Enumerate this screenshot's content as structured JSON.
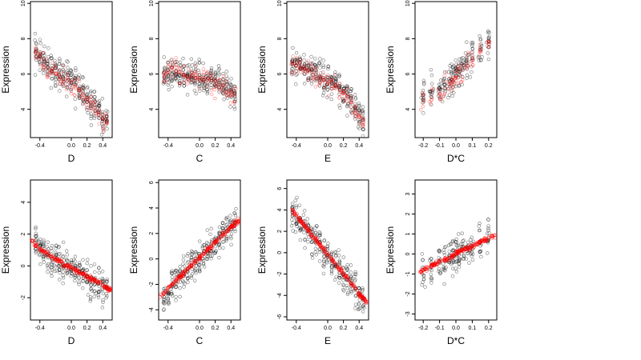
{
  "chart_data": [
    {
      "type": "scatter",
      "xlabel": "D",
      "ylabel": "Expression",
      "xlim": [
        -0.52,
        0.52
      ],
      "ylim": [
        2.4,
        10.1
      ],
      "xticks": [
        "-0.4",
        "0.0",
        "0.2",
        "0.4"
      ],
      "xtick_values": [
        -0.4,
        0.0,
        0.2,
        0.4
      ],
      "yticks": [
        "4",
        "6",
        "8",
        "10"
      ],
      "ytick_values": [
        4,
        6,
        8,
        10
      ],
      "series": [
        {
          "color": "#000000",
          "kind": "observed",
          "style": "open-circles",
          "x": [
            -0.45,
            -0.4,
            -0.35,
            -0.3,
            -0.25,
            -0.2,
            -0.15,
            -0.1,
            -0.05,
            0.0,
            0.05,
            0.1,
            0.15,
            0.2,
            0.25,
            0.3,
            0.35,
            0.4,
            0.45
          ],
          "y": [
            7.3,
            7.0,
            6.7,
            6.4,
            6.2,
            6.0,
            5.9,
            5.7,
            5.6,
            5.5,
            5.4,
            5.2,
            5.0,
            4.7,
            4.4,
            4.1,
            3.8,
            3.5,
            3.3
          ]
        },
        {
          "color": "#ff0000",
          "kind": "fitted",
          "style": "open-circles",
          "x": [
            -0.45,
            -0.4,
            -0.35,
            -0.3,
            -0.25,
            -0.2,
            -0.15,
            -0.1,
            -0.05,
            0.0,
            0.05,
            0.1,
            0.15,
            0.2,
            0.25,
            0.3,
            0.35,
            0.4,
            0.45
          ],
          "y": [
            7.2,
            6.9,
            6.6,
            6.4,
            6.2,
            6.0,
            5.8,
            5.7,
            5.6,
            5.4,
            5.3,
            5.1,
            4.9,
            4.6,
            4.3,
            4.0,
            3.7,
            3.4,
            3.2
          ]
        }
      ]
    },
    {
      "type": "scatter",
      "xlabel": "C",
      "ylabel": "Expression",
      "xlim": [
        -0.52,
        0.52
      ],
      "ylim": [
        2.4,
        10.1
      ],
      "xticks": [
        "-0.4",
        "0.0",
        "0.2",
        "0.4"
      ],
      "xtick_values": [
        -0.4,
        0.0,
        0.2,
        0.4
      ],
      "yticks": [
        "4",
        "6",
        "8",
        "10"
      ],
      "ytick_values": [
        4,
        6,
        8,
        10
      ],
      "series": [
        {
          "color": "#000000",
          "kind": "observed",
          "style": "open-circles",
          "x": [
            -0.45,
            -0.4,
            -0.35,
            -0.3,
            -0.25,
            -0.2,
            -0.15,
            -0.1,
            -0.05,
            0.0,
            0.05,
            0.1,
            0.15,
            0.2,
            0.25,
            0.3,
            0.35,
            0.4,
            0.45
          ],
          "y": [
            5.8,
            5.9,
            6.0,
            6.0,
            5.9,
            5.9,
            5.8,
            5.8,
            5.8,
            5.7,
            5.7,
            5.7,
            5.6,
            5.6,
            5.5,
            5.4,
            5.2,
            5.0,
            4.9
          ]
        },
        {
          "color": "#ff0000",
          "kind": "fitted",
          "style": "open-circles",
          "x": [
            -0.45,
            -0.4,
            -0.35,
            -0.3,
            -0.25,
            -0.2,
            -0.15,
            -0.1,
            -0.05,
            0.0,
            0.05,
            0.1,
            0.15,
            0.2,
            0.25,
            0.3,
            0.35,
            0.4,
            0.45
          ],
          "y": [
            5.9,
            6.1,
            6.2,
            6.2,
            6.1,
            6.0,
            5.9,
            5.9,
            5.8,
            5.8,
            5.8,
            5.7,
            5.6,
            5.5,
            5.4,
            5.3,
            5.1,
            4.9,
            4.8
          ]
        }
      ]
    },
    {
      "type": "scatter",
      "xlabel": "E",
      "ylabel": "Expression",
      "xlim": [
        -0.52,
        0.52
      ],
      "ylim": [
        2.4,
        10.1
      ],
      "xticks": [
        "-0.4",
        "0.0",
        "0.2",
        "0.4"
      ],
      "xtick_values": [
        -0.4,
        0.0,
        0.2,
        0.4
      ],
      "yticks": [
        "4",
        "6",
        "8",
        "10"
      ],
      "ytick_values": [
        4,
        6,
        8,
        10
      ],
      "series": [
        {
          "color": "#000000",
          "kind": "observed",
          "style": "open-circles",
          "x": [
            -0.45,
            -0.4,
            -0.35,
            -0.3,
            -0.25,
            -0.2,
            -0.15,
            -0.1,
            -0.05,
            0.0,
            0.05,
            0.1,
            0.15,
            0.2,
            0.25,
            0.3,
            0.35,
            0.4,
            0.45
          ],
          "y": [
            6.7,
            6.5,
            6.4,
            6.3,
            6.2,
            6.1,
            6.0,
            5.9,
            5.8,
            5.7,
            5.5,
            5.4,
            5.2,
            5.0,
            4.8,
            4.5,
            4.1,
            3.7,
            3.4
          ]
        },
        {
          "color": "#ff0000",
          "kind": "fitted",
          "style": "open-circles",
          "x": [
            -0.45,
            -0.4,
            -0.35,
            -0.3,
            -0.25,
            -0.2,
            -0.15,
            -0.1,
            -0.05,
            0.0,
            0.05,
            0.1,
            0.15,
            0.2,
            0.25,
            0.3,
            0.35,
            0.4,
            0.45
          ],
          "y": [
            6.6,
            6.5,
            6.4,
            6.3,
            6.2,
            6.1,
            6.0,
            5.8,
            5.7,
            5.6,
            5.4,
            5.3,
            5.1,
            4.9,
            4.7,
            4.4,
            4.0,
            3.6,
            3.3
          ]
        }
      ]
    },
    {
      "type": "scatter",
      "xlabel": "D*C",
      "ylabel": "Expression",
      "xlim": [
        -0.25,
        0.25
      ],
      "ylim": [
        2.4,
        10.1
      ],
      "xticks": [
        "-0.2",
        "-0.1",
        "0.0",
        "0.1",
        "0.2"
      ],
      "xtick_values": [
        -0.2,
        -0.1,
        0.0,
        0.1,
        0.2
      ],
      "yticks": [
        "4",
        "6",
        "8",
        "10"
      ],
      "ytick_values": [
        4,
        6,
        8,
        10
      ],
      "series": [
        {
          "color": "#000000",
          "kind": "observed",
          "style": "open-circles",
          "x": [
            -0.2,
            -0.15,
            -0.1,
            -0.07,
            -0.04,
            -0.02,
            0.0,
            0.02,
            0.04,
            0.07,
            0.1,
            0.15,
            0.2
          ],
          "y": [
            4.8,
            5.0,
            5.2,
            5.4,
            5.6,
            5.8,
            5.9,
            6.1,
            6.3,
            6.6,
            6.9,
            7.4,
            7.9
          ]
        },
        {
          "color": "#ff0000",
          "kind": "fitted",
          "style": "open-circles",
          "x": [
            -0.2,
            -0.15,
            -0.1,
            -0.07,
            -0.04,
            -0.02,
            0.0,
            0.02,
            0.04,
            0.07,
            0.1,
            0.15,
            0.2
          ],
          "y": [
            4.5,
            4.7,
            4.9,
            5.2,
            5.4,
            5.6,
            5.8,
            6.0,
            6.2,
            6.5,
            6.8,
            7.3,
            7.8
          ]
        }
      ]
    },
    {
      "type": "scatter",
      "xlabel": "D",
      "ylabel": "Expression",
      "xlim": [
        -0.52,
        0.52
      ],
      "ylim": [
        -3.4,
        5.4
      ],
      "xticks": [
        "-0.4",
        "0.0",
        "0.2",
        "0.4"
      ],
      "xtick_values": [
        -0.4,
        0.0,
        0.2,
        0.4
      ],
      "yticks": [
        "-2",
        "0",
        "2",
        "4"
      ],
      "ytick_values": [
        -2,
        0,
        2,
        4
      ],
      "series": [
        {
          "color": "#000000",
          "kind": "observed",
          "style": "open-circles",
          "x": [
            -0.45,
            -0.4,
            -0.35,
            -0.3,
            -0.25,
            -0.2,
            -0.15,
            -0.1,
            -0.05,
            0.0,
            0.05,
            0.1,
            0.15,
            0.2,
            0.25,
            0.3,
            0.35,
            0.4,
            0.45
          ],
          "y": [
            1.6,
            1.2,
            0.9,
            0.7,
            0.5,
            0.4,
            0.2,
            0.1,
            0.0,
            -0.1,
            -0.2,
            -0.4,
            -0.5,
            -0.6,
            -0.8,
            -0.9,
            -1.1,
            -1.2,
            -1.4
          ]
        },
        {
          "color": "#ff0000",
          "kind": "fitted",
          "style": "filled-band",
          "x": [
            -0.5,
            -0.45,
            -0.4,
            -0.35,
            -0.3,
            -0.25,
            -0.2,
            -0.15,
            -0.1,
            -0.05,
            0.0,
            0.05,
            0.1,
            0.15,
            0.2,
            0.25,
            0.3,
            0.35,
            0.4,
            0.45,
            0.5
          ],
          "y": [
            1.6,
            1.3,
            1.1,
            0.9,
            0.7,
            0.6,
            0.4,
            0.3,
            0.1,
            0.0,
            -0.1,
            -0.3,
            -0.4,
            -0.5,
            -0.7,
            -0.8,
            -0.9,
            -1.1,
            -1.2,
            -1.4,
            -1.5
          ]
        }
      ]
    },
    {
      "type": "scatter",
      "xlabel": "C",
      "ylabel": "Expression",
      "xlim": [
        -0.52,
        0.52
      ],
      "ylim": [
        -4.8,
        6.2
      ],
      "xticks": [
        "-0.4",
        "0.0",
        "0.2",
        "0.4"
      ],
      "xtick_values": [
        -0.4,
        0.0,
        0.2,
        0.4
      ],
      "yticks": [
        "-4",
        "-2",
        "0",
        "2",
        "4",
        "6"
      ],
      "ytick_values": [
        -4,
        -2,
        0,
        2,
        4,
        6
      ],
      "series": [
        {
          "color": "#000000",
          "kind": "observed",
          "style": "open-circles",
          "x": [
            -0.45,
            -0.4,
            -0.35,
            -0.3,
            -0.25,
            -0.2,
            -0.15,
            -0.1,
            -0.05,
            0.0,
            0.05,
            0.1,
            0.15,
            0.2,
            0.25,
            0.3,
            0.35,
            0.4,
            0.45
          ],
          "y": [
            -3.0,
            -2.6,
            -2.2,
            -1.8,
            -1.4,
            -1.1,
            -0.8,
            -0.5,
            -0.2,
            0.1,
            0.4,
            0.7,
            1.0,
            1.3,
            1.6,
            1.9,
            2.2,
            2.5,
            2.9
          ]
        },
        {
          "color": "#ff0000",
          "kind": "fitted",
          "style": "filled-band",
          "x": [
            -0.5,
            -0.45,
            -0.4,
            -0.35,
            -0.3,
            -0.25,
            -0.2,
            -0.15,
            -0.1,
            -0.05,
            0.0,
            0.05,
            0.1,
            0.15,
            0.2,
            0.25,
            0.3,
            0.35,
            0.4,
            0.45,
            0.5
          ],
          "y": [
            -3.0,
            -2.7,
            -2.3,
            -2.0,
            -1.7,
            -1.4,
            -1.1,
            -0.8,
            -0.5,
            -0.2,
            0.1,
            0.4,
            0.7,
            1.0,
            1.3,
            1.6,
            1.9,
            2.2,
            2.5,
            2.8,
            3.0
          ]
        }
      ]
    },
    {
      "type": "scatter",
      "xlabel": "E",
      "ylabel": "Expression",
      "xlim": [
        -0.52,
        0.52
      ],
      "ylim": [
        -6.3,
        6.8
      ],
      "xticks": [
        "-0.4",
        "0.0",
        "0.2",
        "0.4"
      ],
      "xtick_values": [
        -0.4,
        0.0,
        0.2,
        0.4
      ],
      "yticks": [
        "-6",
        "-4",
        "-2",
        "0",
        "2",
        "4",
        "6"
      ],
      "ytick_values": [
        -6,
        -4,
        -2,
        0,
        2,
        4,
        6
      ],
      "series": [
        {
          "color": "#000000",
          "kind": "observed",
          "style": "open-circles",
          "x": [
            -0.45,
            -0.4,
            -0.35,
            -0.3,
            -0.25,
            -0.2,
            -0.15,
            -0.1,
            -0.05,
            0.0,
            0.05,
            0.1,
            0.15,
            0.2,
            0.25,
            0.3,
            0.35,
            0.4,
            0.45
          ],
          "y": [
            3.8,
            3.4,
            2.9,
            2.5,
            2.0,
            1.6,
            1.1,
            0.7,
            0.2,
            -0.2,
            -0.7,
            -1.1,
            -1.6,
            -2.0,
            -2.5,
            -2.9,
            -3.4,
            -3.8,
            -4.3
          ]
        },
        {
          "color": "#ff0000",
          "kind": "fitted",
          "style": "filled-band",
          "x": [
            -0.45,
            -0.4,
            -0.35,
            -0.3,
            -0.25,
            -0.2,
            -0.15,
            -0.1,
            -0.05,
            0.0,
            0.05,
            0.1,
            0.15,
            0.2,
            0.25,
            0.3,
            0.35,
            0.4,
            0.45,
            0.5
          ],
          "y": [
            4.0,
            3.5,
            3.0,
            2.6,
            2.1,
            1.7,
            1.2,
            0.8,
            0.3,
            -0.2,
            -0.6,
            -1.1,
            -1.5,
            -2.0,
            -2.4,
            -2.9,
            -3.3,
            -3.8,
            -4.2,
            -4.6
          ]
        }
      ]
    },
    {
      "type": "scatter",
      "xlabel": "D*C",
      "ylabel": "Expression",
      "xlim": [
        -0.25,
        0.25
      ],
      "ylim": [
        -3.3,
        3.7
      ],
      "xticks": [
        "-0.2",
        "-0.1",
        "0.0",
        "0.1",
        "0.2"
      ],
      "xtick_values": [
        -0.2,
        -0.1,
        0.0,
        0.1,
        0.2
      ],
      "yticks": [
        "-3",
        "-2",
        "-1",
        "0",
        "1",
        "2",
        "3"
      ],
      "ytick_values": [
        -3,
        -2,
        -1,
        0,
        1,
        2,
        3
      ],
      "series": [
        {
          "color": "#000000",
          "kind": "observed",
          "style": "open-circles",
          "x": [
            -0.2,
            -0.15,
            -0.1,
            -0.07,
            -0.04,
            -0.02,
            0.0,
            0.02,
            0.04,
            0.07,
            0.1,
            0.15,
            0.2
          ],
          "y": [
            -0.8,
            -0.6,
            -0.4,
            -0.3,
            -0.2,
            -0.1,
            0.0,
            0.1,
            0.2,
            0.3,
            0.4,
            0.6,
            0.8
          ]
        },
        {
          "color": "#ff0000",
          "kind": "fitted",
          "style": "filled-band",
          "x": [
            -0.22,
            -0.2,
            -0.15,
            -0.1,
            -0.07,
            -0.04,
            -0.02,
            0.0,
            0.02,
            0.04,
            0.07,
            0.1,
            0.15,
            0.2,
            0.24
          ],
          "y": [
            -0.9,
            -0.8,
            -0.6,
            -0.4,
            -0.3,
            -0.2,
            -0.1,
            0.0,
            0.1,
            0.2,
            0.3,
            0.4,
            0.6,
            0.8,
            0.95
          ]
        }
      ]
    }
  ]
}
